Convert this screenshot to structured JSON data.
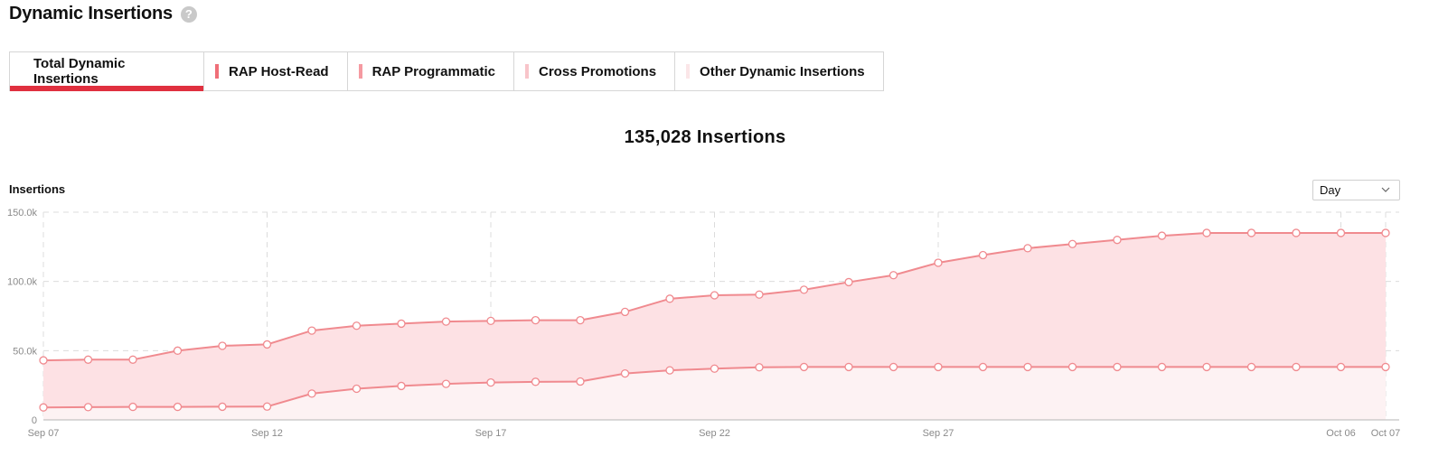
{
  "header": {
    "title": "Dynamic Insertions",
    "help_icon": "question-mark-circle-icon"
  },
  "tabs": [
    {
      "label": "Total Dynamic Insertions",
      "active": true,
      "color": "#e0303f"
    },
    {
      "label": "RAP Host-Read",
      "color": "#ef6f78"
    },
    {
      "label": "RAP Programmatic",
      "color": "#f59aa1"
    },
    {
      "label": "Cross Promotions",
      "color": "#f8c5ca"
    },
    {
      "label": "Other Dynamic Insertions",
      "color": "#fbe6e8"
    }
  ],
  "summary": {
    "total": "135,028 Insertions"
  },
  "dropdown": {
    "selected": "Day",
    "icon": "chevron-down-icon"
  },
  "colors": {
    "line": "#f08a8f",
    "upper_fill": "#fde1e4",
    "lower_fill": "#fdf2f3",
    "grid": "#dcdcdc",
    "accent": "#e0303f"
  },
  "chart_data": {
    "type": "area",
    "ylabel": "Insertions",
    "ylim": [
      0,
      150000
    ],
    "y_ticks": [
      "0",
      "50.0k",
      "100.0k",
      "150.0k"
    ],
    "x_tick_labels": [
      "Sep 07",
      "Sep 12",
      "Sep 17",
      "Sep 22",
      "Sep 27",
      "Oct 06",
      "Oct 07"
    ],
    "grid": true,
    "categories": [
      "Sep 07",
      "Sep 08",
      "Sep 09",
      "Sep 10",
      "Sep 11",
      "Sep 12",
      "Sep 13",
      "Sep 14",
      "Sep 15",
      "Sep 16",
      "Sep 17",
      "Sep 18",
      "Sep 19",
      "Sep 20",
      "Sep 21",
      "Sep 22",
      "Sep 23",
      "Sep 24",
      "Sep 25",
      "Sep 26",
      "Sep 27",
      "Sep 28",
      "Sep 29",
      "Sep 30",
      "Oct 01",
      "Oct 02",
      "Oct 03",
      "Oct 04",
      "Oct 05",
      "Oct 06",
      "Oct 07"
    ],
    "series": [
      {
        "values": [
          9000,
          9200,
          9400,
          9400,
          9500,
          9600,
          19000,
          22500,
          24500,
          26000,
          27000,
          27500,
          27700,
          33500,
          35800,
          37000,
          38000,
          38200,
          38200,
          38200,
          38200,
          38200,
          38200,
          38200,
          38200,
          38200,
          38200,
          38200,
          38200,
          38200,
          38200
        ]
      },
      {
        "values": [
          43000,
          43500,
          43500,
          50000,
          53500,
          54500,
          64500,
          68000,
          69500,
          71000,
          71500,
          72000,
          72000,
          78000,
          87500,
          90000,
          90500,
          94000,
          99500,
          104500,
          113500,
          119000,
          124000,
          127000,
          130000,
          133000,
          135028,
          135028,
          135028,
          135028,
          135028
        ]
      }
    ]
  }
}
